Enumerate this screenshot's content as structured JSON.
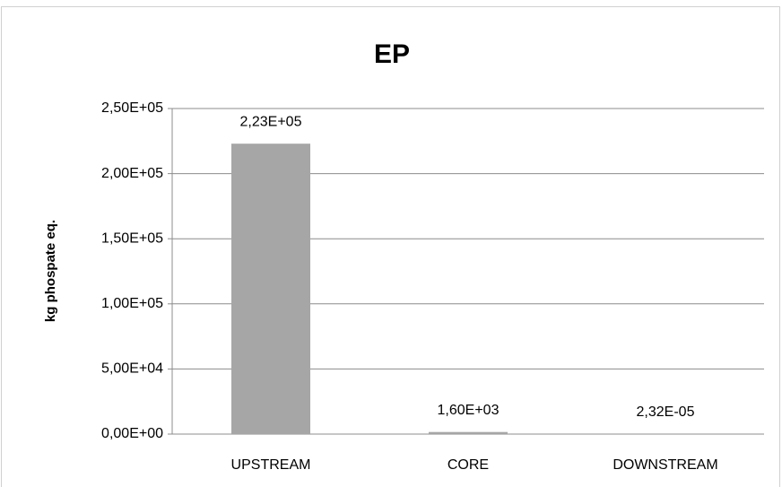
{
  "chart_data": {
    "type": "bar",
    "title": "EP",
    "y_label": "kg phospate eq.",
    "categories": [
      "UPSTREAM",
      "CORE",
      "DOWNSTREAM"
    ],
    "values": [
      223000,
      1600,
      2.32e-05
    ],
    "value_labels": [
      "2,23E+05",
      "1,60E+03",
      "2,32E-05"
    ],
    "color": "#a6a6a6",
    "ylim": [
      0,
      250000
    ],
    "yticks": [
      {
        "value": 0,
        "label": "0,00E+00"
      },
      {
        "value": 50000,
        "label": "5,00E+04"
      },
      {
        "value": 100000,
        "label": "1,00E+05"
      },
      {
        "value": 150000,
        "label": "1,50E+05"
      },
      {
        "value": 200000,
        "label": "2,00E+05"
      },
      {
        "value": 250000,
        "label": "2,50E+05"
      }
    ],
    "grid": true
  }
}
